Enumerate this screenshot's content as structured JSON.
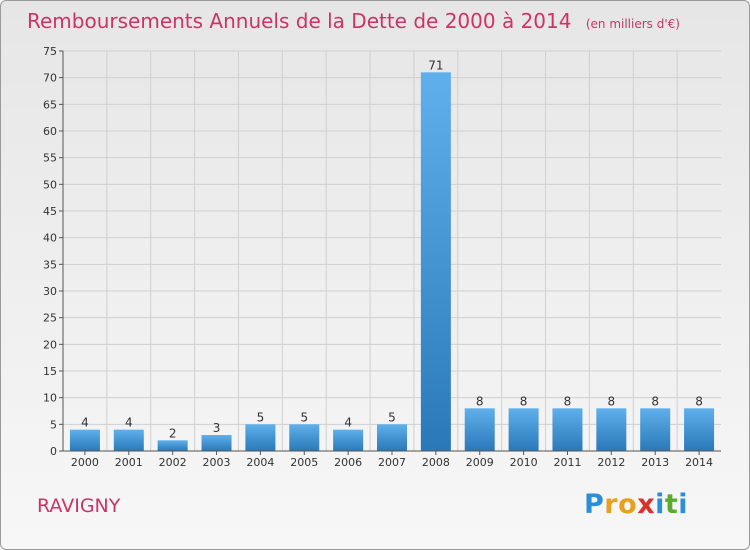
{
  "chart_data": {
    "type": "bar",
    "title": "Remboursements Annuels de la Dette de 2000 à 2014",
    "subtitle": "(en milliers d'€)",
    "categories": [
      "2000",
      "2001",
      "2002",
      "2003",
      "2004",
      "2005",
      "2006",
      "2007",
      "2008",
      "2009",
      "2010",
      "2011",
      "2012",
      "2013",
      "2014"
    ],
    "values": [
      4,
      4,
      2,
      3,
      5,
      5,
      4,
      5,
      71,
      8,
      8,
      8,
      8,
      8,
      8
    ],
    "yticks": [
      0,
      5,
      10,
      15,
      20,
      25,
      30,
      35,
      40,
      45,
      50,
      55,
      60,
      65,
      70,
      75
    ],
    "ylim": [
      0,
      75
    ],
    "xlabel": "",
    "ylabel": "",
    "grid": true
  },
  "commune": "RAVIGNY",
  "logo": {
    "letters": [
      "P",
      "r",
      "o",
      "x",
      "i",
      "t",
      "i"
    ],
    "colors": [
      "#2a8fd6",
      "#e8a020",
      "#e8a020",
      "#d9302c",
      "#2a8fd6",
      "#5aab2e",
      "#2a8fd6"
    ]
  },
  "colors": {
    "title": "#cc3366",
    "bar_top": "#5fb0ec",
    "bar_bottom": "#2a78b8",
    "grid": "#d0d0d0"
  }
}
